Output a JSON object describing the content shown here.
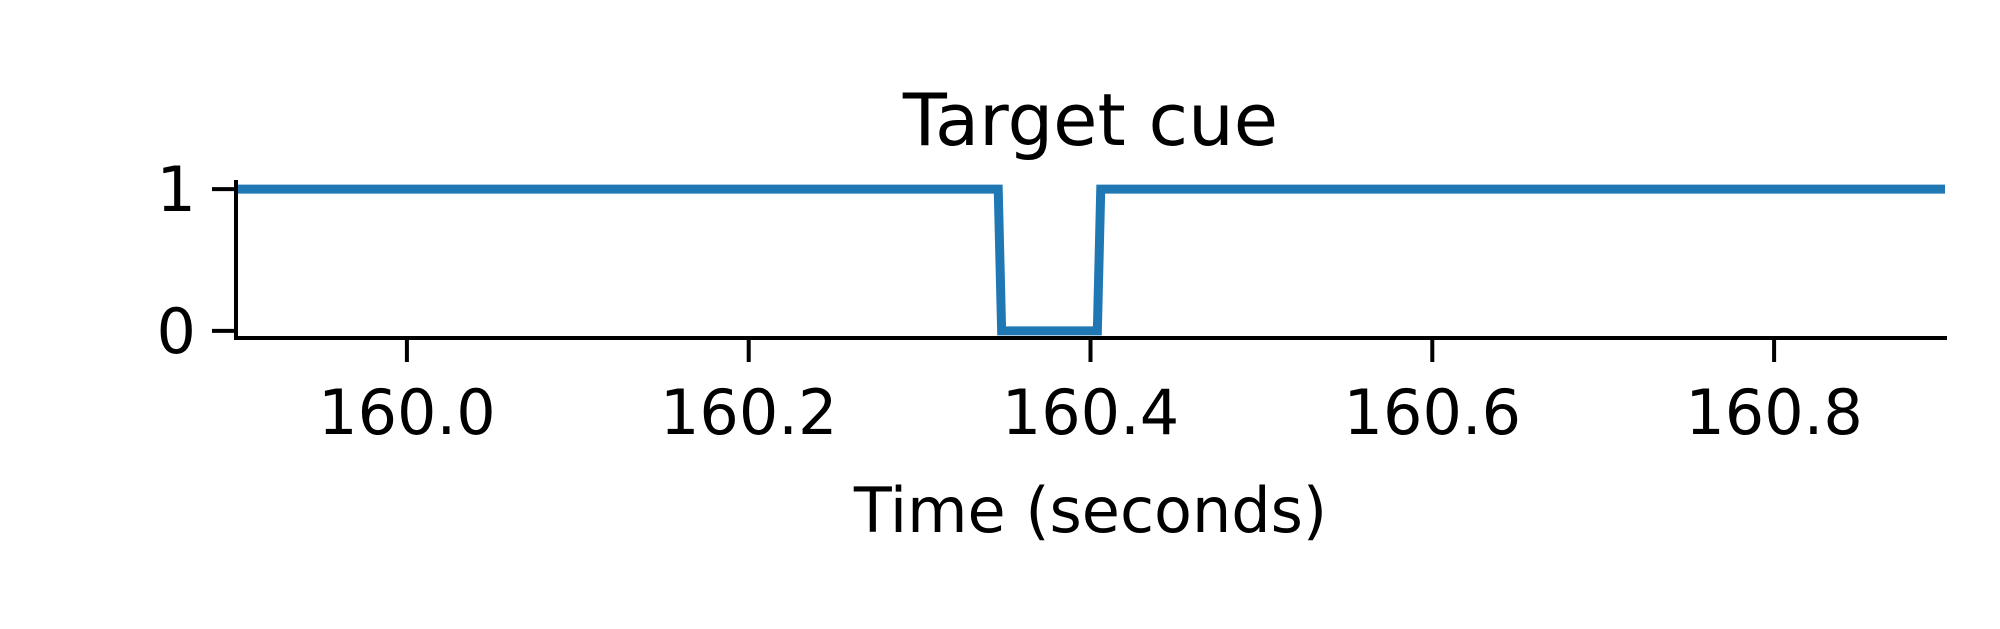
{
  "chart_data": {
    "type": "line",
    "title": "Target cue",
    "xlabel": "Time (seconds)",
    "ylabel": "",
    "xlim": [
      159.9,
      160.9
    ],
    "ylim": [
      -0.05,
      1.05
    ],
    "xticks": [
      160.0,
      160.2,
      160.4,
      160.6,
      160.8
    ],
    "xtick_labels": [
      "160.0",
      "160.2",
      "160.4",
      "160.6",
      "160.8"
    ],
    "yticks": [
      0,
      1
    ],
    "ytick_labels": [
      "0",
      "1"
    ],
    "grid": false,
    "legend": "none",
    "series": [
      {
        "color": "#1f77b4",
        "x": [
          159.9,
          160.346,
          160.348,
          160.404,
          160.406,
          160.9
        ],
        "y": [
          1,
          1,
          0,
          0,
          1,
          1
        ]
      }
    ]
  }
}
